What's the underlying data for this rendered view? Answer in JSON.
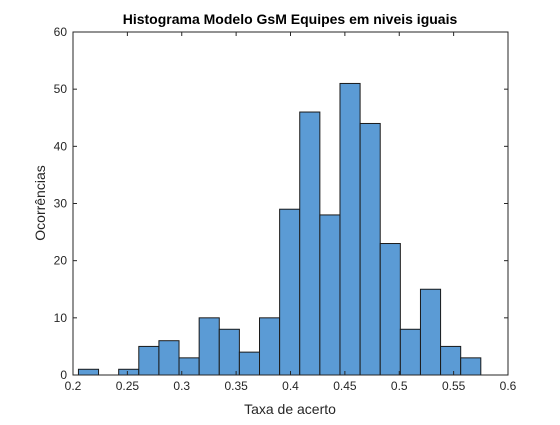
{
  "chart_data": {
    "type": "bar",
    "title": "Histograma Modelo GsM Equipes em niveis iguais",
    "xlabel": "Taxa de acerto",
    "ylabel": "Ocorrências",
    "xlim": [
      0.2,
      0.6
    ],
    "ylim": [
      0,
      60
    ],
    "x_ticks": [
      "0.2",
      "0.25",
      "0.3",
      "0.35",
      "0.4",
      "0.45",
      "0.5",
      "0.55",
      "0.6"
    ],
    "y_ticks": [
      "0",
      "10",
      "20",
      "30",
      "40",
      "50",
      "60"
    ],
    "bin_edges": [
      0.205,
      0.2235,
      0.242,
      0.2605,
      0.279,
      0.2975,
      0.316,
      0.3345,
      0.353,
      0.3715,
      0.39,
      0.4085,
      0.427,
      0.4455,
      0.464,
      0.4825,
      0.501,
      0.5195,
      0.538,
      0.5565,
      0.575
    ],
    "values": [
      1,
      0,
      1,
      5,
      6,
      3,
      10,
      8,
      4,
      10,
      29,
      46,
      28,
      51,
      44,
      23,
      8,
      15,
      5,
      3
    ],
    "grid": false,
    "box": true,
    "colors": {
      "bar_fill": "#5b9bd5",
      "bar_edge": "#1a1a1a",
      "axes": "#262626"
    }
  }
}
